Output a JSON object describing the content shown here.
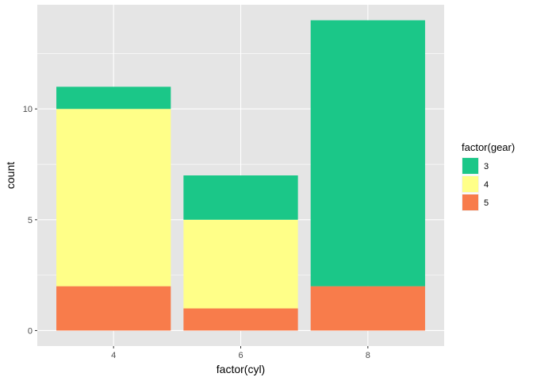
{
  "chart_data": {
    "type": "bar",
    "stacked": true,
    "categories": [
      "4",
      "6",
      "8"
    ],
    "series": [
      {
        "name": "3",
        "values": [
          1,
          2,
          12
        ],
        "color": "#1bc788"
      },
      {
        "name": "4",
        "values": [
          8,
          4,
          0
        ],
        "color": "#ffff88"
      },
      {
        "name": "5",
        "values": [
          2,
          1,
          2
        ],
        "color": "#f87c4b"
      }
    ],
    "stack_order_bottom_to_top": [
      "5",
      "4",
      "3"
    ],
    "xlabel": "factor(cyl)",
    "ylabel": "count",
    "ylim": [
      0,
      14
    ],
    "y_ticks": [
      0,
      5,
      10
    ],
    "y_tick_labels": [
      "0",
      "5",
      "10"
    ],
    "grid": true,
    "legend": {
      "title": "factor(gear)",
      "placement": "right",
      "entries": [
        "3",
        "4",
        "5"
      ]
    },
    "panel_background": "#e5e5e5",
    "grid_color": "#ffffff"
  }
}
